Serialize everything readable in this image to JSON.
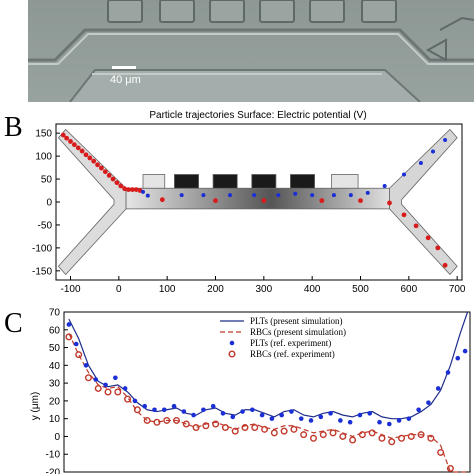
{
  "panel_a": {
    "scale_bar_label": "40 μm",
    "colors": {
      "background": "#8f9a97",
      "channel": "#a6b0ae",
      "text": "#ffffff"
    }
  },
  "chart_data": [
    {
      "panel_label": "B",
      "type": "scatter",
      "title": "Particle trajectories  Surface: Electric potential (V)",
      "xlabel": "",
      "ylabel": "",
      "xlim": [
        -130,
        710
      ],
      "ylim": [
        -170,
        170
      ],
      "x_ticks": [
        "-100",
        "0",
        "100",
        "200",
        "300",
        "400",
        "500",
        "600",
        "700"
      ],
      "y_ticks": [
        "150",
        "100",
        "50",
        "0",
        "-50",
        "-100",
        "-150"
      ],
      "series": [
        {
          "color": "#d81b1b",
          "marker": "circle",
          "x": [
            -115,
            -108,
            -100,
            -92,
            -84,
            -76,
            -68,
            -60,
            -52,
            -44,
            -36,
            -28,
            -20,
            -12,
            -4,
            4,
            12,
            20,
            28,
            36,
            44,
            90,
            200,
            300,
            420,
            500,
            560,
            590,
            615,
            640,
            660,
            675
          ],
          "y": [
            146,
            139,
            132,
            125,
            118,
            111,
            103,
            96,
            89,
            81,
            74,
            66,
            58,
            50,
            42,
            35,
            29,
            27,
            27,
            27,
            25,
            5,
            3,
            3,
            3,
            3,
            -2,
            -28,
            -52,
            -78,
            -100,
            -138
          ]
        },
        {
          "color": "#1a2fd6",
          "marker": "circle",
          "x": [
            50,
            60,
            130,
            175,
            230,
            280,
            330,
            365,
            400,
            445,
            480,
            515,
            550,
            590,
            625,
            650,
            675
          ],
          "y": [
            22,
            14,
            15,
            15,
            15,
            15,
            15,
            18,
            15,
            15,
            15,
            20,
            35,
            60,
            85,
            110,
            135
          ]
        }
      ],
      "colormap": "electric potential (grayscale, black = high)",
      "grid": false,
      "legend": "none"
    },
    {
      "panel_label": "C",
      "type": "line",
      "title": "",
      "xlabel": "",
      "ylabel": "y (μm)",
      "xlim": [
        -120,
        710
      ],
      "ylim": [
        -20,
        70
      ],
      "y_ticks": [
        "70",
        "60",
        "50",
        "40",
        "30",
        "20",
        "10",
        "0",
        "-10",
        "-20"
      ],
      "legend_position": "top-center",
      "series": [
        {
          "name": "PLTs (present simulation)",
          "style": "solid-line",
          "color": "#1f2d8a",
          "x": [
            -110,
            -90,
            -70,
            -50,
            -30,
            -10,
            10,
            30,
            50,
            70,
            90,
            110,
            130,
            150,
            170,
            190,
            210,
            230,
            250,
            270,
            290,
            310,
            330,
            350,
            370,
            390,
            410,
            430,
            450,
            470,
            490,
            510,
            530,
            550,
            570,
            590,
            610,
            630,
            650,
            670,
            690,
            705
          ],
          "y": [
            66,
            55,
            40,
            31,
            28,
            29,
            25,
            19,
            15,
            14,
            15,
            16,
            13,
            12,
            15,
            16,
            13,
            12,
            15,
            15,
            13,
            11,
            14,
            15,
            12,
            11,
            13,
            14,
            12,
            11,
            13,
            14,
            11,
            10,
            10,
            11,
            14,
            18,
            26,
            40,
            58,
            70
          ]
        },
        {
          "name": "RBCs (present simulation)",
          "style": "dashed-line",
          "color": "#c0392b",
          "x": [
            -110,
            -90,
            -70,
            -50,
            -30,
            -10,
            10,
            30,
            50,
            70,
            90,
            110,
            130,
            150,
            170,
            190,
            210,
            230,
            250,
            270,
            290,
            310,
            330,
            350,
            370,
            390,
            410,
            430,
            450,
            470,
            490,
            510,
            530,
            550,
            570,
            590,
            610,
            630,
            650,
            670,
            690,
            705
          ],
          "y": [
            58,
            46,
            36,
            29,
            27,
            28,
            22,
            14,
            9,
            8,
            9,
            9,
            7,
            5,
            7,
            8,
            6,
            4,
            6,
            7,
            5,
            4,
            6,
            6,
            4,
            2,
            3,
            4,
            2,
            0,
            2,
            3,
            1,
            -1,
            0,
            1,
            1,
            0,
            -5,
            -20,
            -20,
            -20
          ]
        },
        {
          "name": "PLTs (ref. experiment)",
          "style": "filled-dots",
          "color": "#1a2fd6",
          "x": [
            -110,
            -95,
            -75,
            -55,
            -35,
            -15,
            5,
            25,
            45,
            65,
            85,
            105,
            125,
            145,
            165,
            185,
            205,
            225,
            245,
            265,
            285,
            305,
            325,
            345,
            365,
            385,
            405,
            425,
            445,
            465,
            485,
            505,
            525,
            545,
            565,
            585,
            605,
            625,
            645,
            665,
            685,
            700
          ],
          "y": [
            63,
            52,
            40,
            32,
            29,
            33,
            27,
            20,
            17,
            15,
            15,
            17,
            14,
            12,
            15,
            17,
            13,
            11,
            14,
            15,
            12,
            10,
            12,
            14,
            10,
            9,
            11,
            13,
            9,
            8,
            12,
            13,
            8,
            7,
            9,
            10,
            15,
            19,
            27,
            36,
            44,
            48
          ]
        },
        {
          "name": "RBCs (ref. experiment)",
          "style": "open-circles",
          "color": "#c0392b",
          "x": [
            -110,
            -90,
            -70,
            -50,
            -30,
            -10,
            10,
            30,
            50,
            70,
            90,
            110,
            130,
            150,
            170,
            190,
            210,
            230,
            250,
            270,
            290,
            310,
            330,
            350,
            370,
            390,
            410,
            430,
            450,
            470,
            490,
            510,
            530,
            550,
            570,
            590,
            610,
            630,
            650,
            670
          ],
          "y": [
            56,
            46,
            33,
            27,
            25,
            25,
            21,
            15,
            9,
            8,
            9,
            9,
            7,
            5,
            6,
            7,
            5,
            3,
            5,
            5,
            4,
            2,
            3,
            4,
            1,
            -1,
            1,
            2,
            0,
            -2,
            1,
            2,
            -1,
            -3,
            -1,
            0,
            1,
            -1,
            -9,
            -18
          ]
        }
      ]
    }
  ]
}
